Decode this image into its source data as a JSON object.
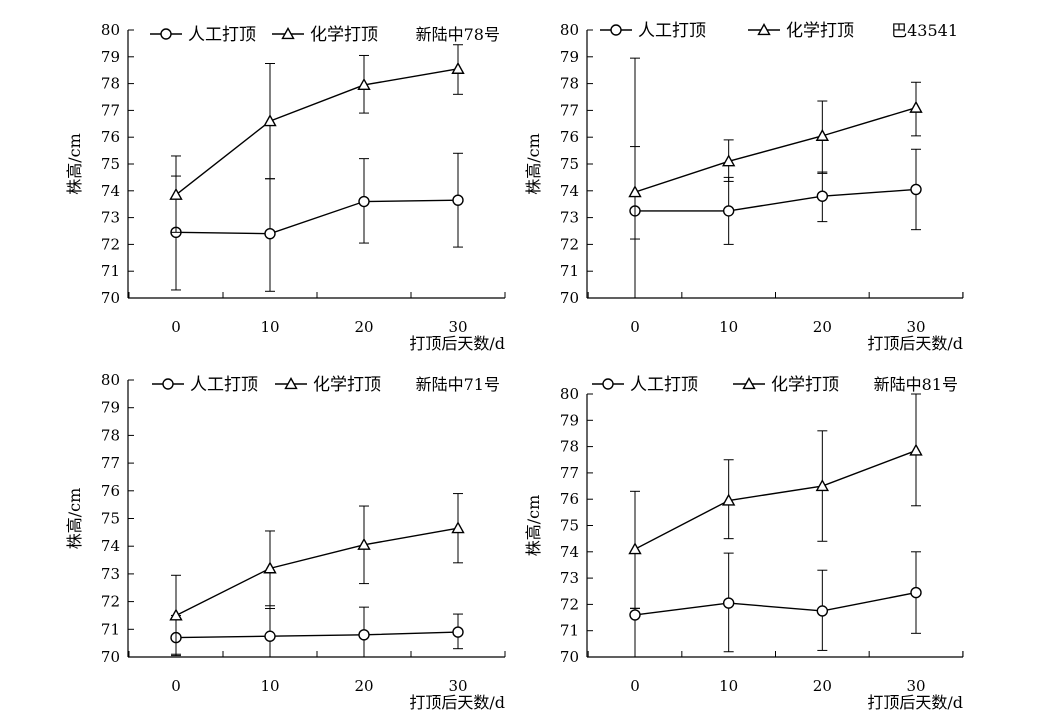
{
  "chart_data": [
    {
      "type": "line",
      "cultivar": "新陆中78号",
      "xlabel": "打顶后天数/d",
      "ylabel": "株高/cm",
      "x": [
        0,
        10,
        20,
        30
      ],
      "ylim": [
        70,
        80
      ],
      "yticks": [
        70,
        71,
        72,
        73,
        74,
        75,
        76,
        77,
        78,
        79,
        80
      ],
      "grid": false,
      "legend_position": "top",
      "series": [
        {
          "name": "人工打顶",
          "marker": "circle",
          "values": [
            72.45,
            72.4,
            73.6,
            73.65
          ],
          "err_low": [
            70.3,
            70.25,
            72.05,
            71.9
          ],
          "err_high": [
            74.55,
            74.45,
            75.2,
            75.4
          ]
        },
        {
          "name": "化学打顶",
          "marker": "triangle",
          "values": [
            73.85,
            76.6,
            77.95,
            78.55
          ],
          "err_low": [
            72.45,
            74.45,
            76.9,
            77.6
          ],
          "err_high": [
            75.3,
            78.75,
            79.05,
            79.45
          ]
        }
      ]
    },
    {
      "type": "line",
      "cultivar": "巴43541",
      "xlabel": "打顶后天数/d",
      "ylabel": "株高/cm",
      "x": [
        0,
        10,
        20,
        30
      ],
      "ylim": [
        70,
        80
      ],
      "yticks": [
        70,
        71,
        72,
        73,
        74,
        75,
        76,
        77,
        78,
        79,
        80
      ],
      "grid": false,
      "legend_position": "top",
      "series": [
        {
          "name": "人工打顶",
          "marker": "circle",
          "values": [
            73.25,
            73.25,
            73.8,
            74.05
          ],
          "err_low": [
            70.0,
            72.0,
            72.85,
            72.55
          ],
          "err_high": [
            75.65,
            74.5,
            74.7,
            75.55
          ]
        },
        {
          "name": "化学打顶",
          "marker": "triangle",
          "values": [
            73.95,
            75.1,
            76.05,
            77.1
          ],
          "err_low": [
            72.2,
            74.35,
            74.65,
            76.05
          ],
          "err_high": [
            78.95,
            75.9,
            77.35,
            78.05
          ]
        }
      ]
    },
    {
      "type": "line",
      "cultivar": "新陆中71号",
      "xlabel": "打顶后天数/d",
      "ylabel": "株高/cm",
      "x": [
        0,
        10,
        20,
        30
      ],
      "ylim": [
        70,
        80
      ],
      "yticks": [
        70,
        71,
        72,
        73,
        74,
        75,
        76,
        77,
        78,
        79,
        80
      ],
      "grid": false,
      "legend_position": "top",
      "series": [
        {
          "name": "人工打顶",
          "marker": "circle",
          "values": [
            70.7,
            70.75,
            70.8,
            70.9
          ],
          "err_low": [
            70.1,
            70.0,
            70.0,
            70.3
          ],
          "err_high": [
            71.5,
            71.85,
            71.8,
            71.55
          ]
        },
        {
          "name": "化学打顶",
          "marker": "triangle",
          "values": [
            71.5,
            73.2,
            74.05,
            74.65
          ],
          "err_low": [
            70.05,
            71.75,
            72.65,
            73.4
          ],
          "err_high": [
            72.95,
            74.55,
            75.45,
            75.9
          ]
        }
      ]
    },
    {
      "type": "line",
      "cultivar": "新陆中81号",
      "xlabel": "打顶后天数/d",
      "ylabel": "株高/cm",
      "x": [
        0,
        10,
        20,
        30
      ],
      "ylim": [
        70,
        80
      ],
      "yticks": [
        70,
        71,
        72,
        73,
        74,
        75,
        76,
        77,
        78,
        79,
        80
      ],
      "grid": false,
      "legend_position": "top",
      "series": [
        {
          "name": "人工打顶",
          "marker": "circle",
          "values": [
            71.6,
            72.05,
            71.75,
            72.45
          ],
          "err_low": [
            70.0,
            70.2,
            70.25,
            70.9
          ],
          "err_high": [
            71.85,
            73.95,
            73.3,
            74.0
          ]
        },
        {
          "name": "化学打顶",
          "marker": "triangle",
          "values": [
            74.1,
            75.95,
            76.5,
            77.85
          ],
          "err_low": [
            71.85,
            74.5,
            74.4,
            75.75
          ],
          "err_high": [
            76.3,
            77.5,
            78.6,
            80.0
          ]
        }
      ]
    }
  ]
}
